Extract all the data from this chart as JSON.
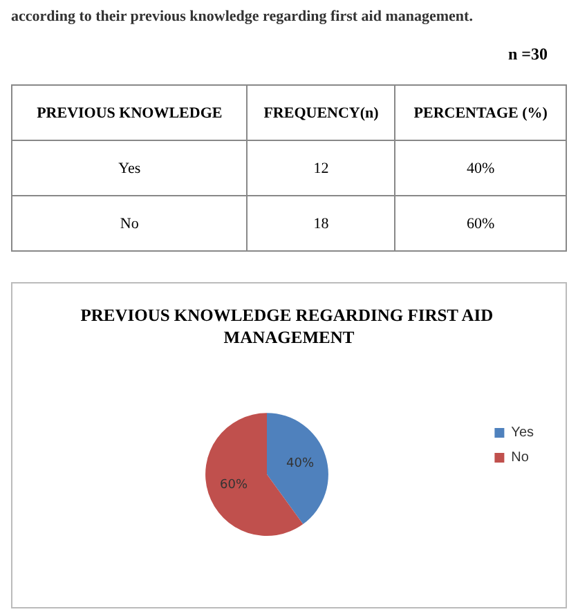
{
  "chart_data": [
    {
      "type": "other",
      "title": "according to their previous knowledge regarding first aid management.",
      "subtitle": "n =30",
      "annotations": [
        "PREVIOUS KNOWLEDGE",
        "FREQUENCY(n)",
        "PERCENTAGE (%)",
        "Yes",
        "12",
        "40%",
        "No",
        "18",
        "60%"
      ]
    },
    {
      "type": "pie",
      "title": "PREVIOUS KNOWLEDGE REGARDING FIRST AID MANAGEMENT",
      "categories": [
        "Yes",
        "No"
      ],
      "values": [
        40,
        60
      ],
      "colors": [
        "#4f81bd",
        "#c0504d"
      ],
      "value_labels": [
        "40%",
        "60%"
      ],
      "legend": "right"
    }
  ]
}
